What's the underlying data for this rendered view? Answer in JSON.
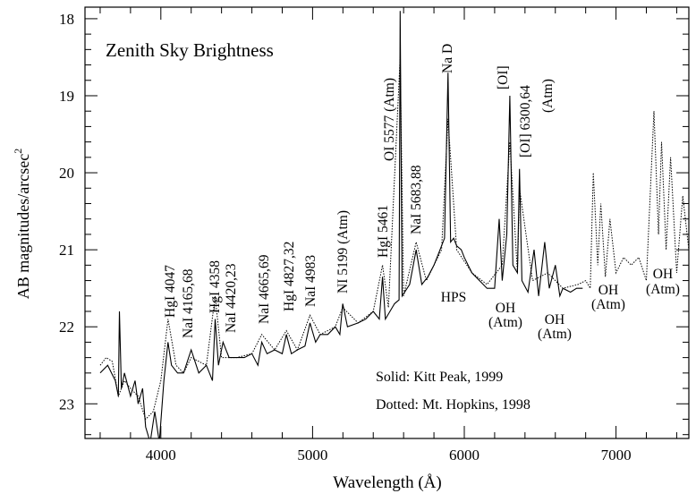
{
  "chart_data": {
    "type": "line",
    "title": "Zenith Sky Brightness",
    "xlabel": "Wavelength (Å)",
    "ylabel": "AB magnitudes/arcsec",
    "ylabel_superscript": "2",
    "xlim": [
      3500,
      7480
    ],
    "ylim": [
      23.45,
      17.85
    ],
    "y_inverted": true,
    "grid": false,
    "x_ticks": [
      4000,
      5000,
      6000,
      7000
    ],
    "y_ticks": [
      18,
      19,
      20,
      21,
      22,
      23
    ],
    "x_tick_labels": [
      "4000",
      "5000",
      "6000",
      "7000"
    ],
    "y_tick_labels": [
      "18",
      "19",
      "20",
      "21",
      "22",
      "23"
    ],
    "legend": [
      "Solid: Kitt Peak, 1999",
      "Dotted: Mt. Hopkins, 1998"
    ],
    "legend_placement": "bottom-right",
    "series": [
      {
        "name": "Solid: Kitt Peak, 1999",
        "style": "solid",
        "color": "#000000",
        "x": [
          3600,
          3650,
          3700,
          3720,
          3727,
          3740,
          3760,
          3800,
          3830,
          3850,
          3880,
          3900,
          3930,
          3960,
          3990,
          4020,
          4047,
          4070,
          4110,
          4150,
          4200,
          4250,
          4300,
          4340,
          4358,
          4380,
          4410,
          4450,
          4500,
          4550,
          4600,
          4640,
          4665,
          4700,
          4750,
          4800,
          4827,
          4860,
          4900,
          4950,
          4983,
          5020,
          5050,
          5100,
          5150,
          5180,
          5199,
          5230,
          5300,
          5350,
          5400,
          5440,
          5461,
          5480,
          5540,
          5570,
          5577,
          5590,
          5640,
          5683,
          5720,
          5760,
          5800,
          5840,
          5870,
          5893,
          5910,
          5930,
          5950,
          5980,
          6000,
          6050,
          6100,
          6150,
          6200,
          6230,
          6250,
          6280,
          6300,
          6320,
          6350,
          6364,
          6380,
          6420,
          6460,
          6490,
          6530,
          6560,
          6600,
          6630,
          6650,
          6700,
          6740,
          6780
        ],
        "y": [
          22.6,
          22.5,
          22.7,
          22.9,
          21.8,
          22.8,
          22.6,
          22.9,
          22.7,
          23.0,
          22.8,
          23.3,
          23.5,
          23.1,
          23.5,
          22.7,
          22.2,
          22.5,
          22.6,
          22.6,
          22.3,
          22.6,
          22.5,
          22.7,
          21.9,
          22.5,
          22.2,
          22.4,
          22.4,
          22.4,
          22.35,
          22.5,
          22.2,
          22.35,
          22.3,
          22.35,
          22.1,
          22.35,
          22.3,
          22.25,
          21.95,
          22.2,
          22.1,
          22.1,
          22.0,
          22.1,
          21.7,
          22.0,
          21.95,
          21.9,
          21.8,
          21.9,
          21.35,
          21.9,
          21.7,
          21.65,
          17.9,
          21.6,
          21.45,
          21.0,
          21.45,
          21.35,
          21.2,
          21.0,
          20.85,
          18.7,
          20.9,
          20.85,
          20.95,
          21.0,
          21.1,
          21.3,
          21.4,
          21.5,
          21.5,
          20.6,
          21.4,
          20.8,
          19.0,
          21.2,
          21.3,
          19.95,
          21.4,
          21.55,
          21.0,
          21.6,
          20.9,
          21.5,
          21.2,
          21.6,
          21.5,
          21.55,
          21.5,
          21.5
        ]
      },
      {
        "name": "Dotted: Mt. Hopkins, 1998",
        "style": "dotted",
        "color": "#000000",
        "x": [
          3600,
          3640,
          3680,
          3720,
          3760,
          3800,
          3850,
          3900,
          3950,
          4000,
          4047,
          4100,
          4150,
          4200,
          4300,
          4358,
          4400,
          4500,
          4600,
          4665,
          4750,
          4827,
          4900,
          4983,
          5050,
          5150,
          5199,
          5300,
          5400,
          5461,
          5500,
          5577,
          5600,
          5683,
          5750,
          5850,
          5893,
          5950,
          6050,
          6150,
          6250,
          6300,
          6350,
          6364,
          6450,
          6550,
          6650,
          6750,
          6800,
          6830,
          6850,
          6880,
          6900,
          6930,
          6960,
          7000,
          7050,
          7100,
          7150,
          7200,
          7250,
          7280,
          7300,
          7330,
          7360,
          7400,
          7440,
          7480
        ],
        "y": [
          22.5,
          22.4,
          22.45,
          22.9,
          22.7,
          22.8,
          22.9,
          23.2,
          23.1,
          22.7,
          21.9,
          22.5,
          22.6,
          22.4,
          22.5,
          21.6,
          22.4,
          22.4,
          22.35,
          22.1,
          22.3,
          22.05,
          22.3,
          21.85,
          22.1,
          22.0,
          21.75,
          21.95,
          21.8,
          21.2,
          21.75,
          18.5,
          21.6,
          20.9,
          21.4,
          21.0,
          19.3,
          21.0,
          21.3,
          21.45,
          21.2,
          19.6,
          21.3,
          20.2,
          21.4,
          21.3,
          21.5,
          21.45,
          21.4,
          21.5,
          20.0,
          21.2,
          20.4,
          21.35,
          20.6,
          21.3,
          21.1,
          21.2,
          21.1,
          21.4,
          19.2,
          20.8,
          19.6,
          21.0,
          19.8,
          21.3,
          20.3,
          21.0
        ]
      }
    ],
    "annotations": [
      "HgI 4047",
      "NaI 4165,68",
      "HgI 4358",
      "NaI 4420,23",
      "NaI 4665,69",
      "HgI 4827,32",
      "NaI 4983",
      "NI 5199 (Atm)",
      "HgI 5461",
      "OI 5577 (Atm)",
      "NaI 5683,88",
      "Na D",
      "[OI]",
      "[OI] 6300,64",
      "(Atm)",
      "HPS",
      "OH",
      "(Atm)",
      "OH",
      "(Atm)",
      "OH",
      "(Atm)",
      "OH",
      "(Atm)"
    ]
  }
}
